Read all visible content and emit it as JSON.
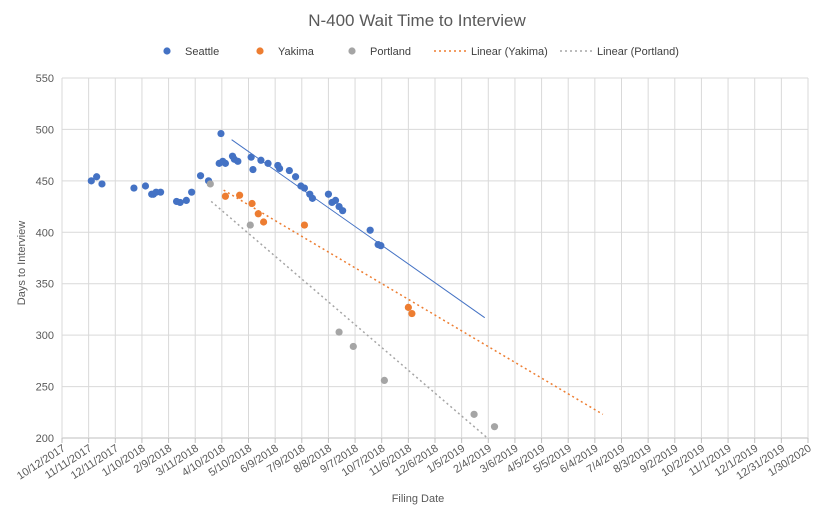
{
  "chart_data": {
    "type": "scatter",
    "title": "N-400 Wait Time to Interview",
    "xlabel": "Filing Date",
    "ylabel": "Days to Interview",
    "ylim": [
      200,
      550
    ],
    "yticks": [
      "200",
      "250",
      "300",
      "350",
      "400",
      "450",
      "500",
      "550"
    ],
    "xlim": [
      "2017-10-12",
      "2020-01-30"
    ],
    "xtick_labels": [
      "10/12/2017",
      "11/11/2017",
      "12/11/2017",
      "1/10/2018",
      "2/9/2018",
      "3/11/2018",
      "4/10/2018",
      "5/10/2018",
      "6/9/2018",
      "7/9/2018",
      "8/8/2018",
      "9/7/2018",
      "10/7/2018",
      "11/6/2018",
      "12/6/2018",
      "1/5/2019",
      "2/4/2019",
      "3/6/2019",
      "4/5/2019",
      "5/5/2019",
      "6/4/2019",
      "7/4/2019",
      "8/3/2019",
      "9/2/2019",
      "10/2/2019",
      "11/1/2019",
      "12/1/2019",
      "12/31/2019",
      "1/30/2020"
    ],
    "grid": true,
    "legend_position": "top",
    "series": [
      {
        "name": "Seattle",
        "color": "#4472c4",
        "kind": "scatter",
        "points": [
          [
            "2017-11-14",
            450
          ],
          [
            "2017-11-20",
            454
          ],
          [
            "2017-11-26",
            447
          ],
          [
            "2018-01-01",
            443
          ],
          [
            "2018-01-14",
            445
          ],
          [
            "2018-01-21",
            437
          ],
          [
            "2018-01-23",
            437
          ],
          [
            "2018-01-26",
            439
          ],
          [
            "2018-01-31",
            439
          ],
          [
            "2018-02-18",
            430
          ],
          [
            "2018-02-22",
            429
          ],
          [
            "2018-03-01",
            431
          ],
          [
            "2018-03-07",
            439
          ],
          [
            "2018-03-17",
            455
          ],
          [
            "2018-03-26",
            450
          ],
          [
            "2018-04-07",
            467
          ],
          [
            "2018-04-09",
            496
          ],
          [
            "2018-04-11",
            469
          ],
          [
            "2018-04-14",
            467
          ],
          [
            "2018-04-22",
            474
          ],
          [
            "2018-04-24",
            471
          ],
          [
            "2018-04-28",
            469
          ],
          [
            "2018-05-13",
            473
          ],
          [
            "2018-05-15",
            461
          ],
          [
            "2018-05-24",
            470
          ],
          [
            "2018-06-01",
            467
          ],
          [
            "2018-06-12",
            465
          ],
          [
            "2018-06-14",
            462
          ],
          [
            "2018-06-25",
            460
          ],
          [
            "2018-07-02",
            454
          ],
          [
            "2018-07-08",
            445
          ],
          [
            "2018-07-12",
            443
          ],
          [
            "2018-07-18",
            437
          ],
          [
            "2018-07-21",
            433
          ],
          [
            "2018-08-08",
            437
          ],
          [
            "2018-08-12",
            429
          ],
          [
            "2018-08-16",
            431
          ],
          [
            "2018-08-20",
            425
          ],
          [
            "2018-08-24",
            421
          ],
          [
            "2018-09-24",
            402
          ],
          [
            "2018-10-03",
            388
          ],
          [
            "2018-10-06",
            387
          ]
        ]
      },
      {
        "name": "Yakima",
        "color": "#ed7d31",
        "kind": "scatter",
        "points": [
          [
            "2018-04-14",
            435
          ],
          [
            "2018-04-30",
            436
          ],
          [
            "2018-05-14",
            428
          ],
          [
            "2018-05-21",
            418
          ],
          [
            "2018-05-27",
            410
          ],
          [
            "2018-07-12",
            407
          ],
          [
            "2018-11-06",
            327
          ],
          [
            "2018-11-10",
            321
          ]
        ]
      },
      {
        "name": "Portland",
        "color": "#a5a5a5",
        "kind": "scatter",
        "points": [
          [
            "2018-03-28",
            447
          ],
          [
            "2018-05-12",
            407
          ],
          [
            "2018-08-20",
            303
          ],
          [
            "2018-09-05",
            289
          ],
          [
            "2018-10-10",
            256
          ],
          [
            "2019-01-19",
            223
          ],
          [
            "2019-02-11",
            211
          ]
        ]
      },
      {
        "name": "Linear (Yakima)",
        "color": "#ed7d31",
        "kind": "trend",
        "dash": "2,3",
        "line": [
          [
            "2018-04-12",
            441
          ],
          [
            "2019-06-13",
            223
          ]
        ]
      },
      {
        "name": "Linear (Portland)",
        "color": "#a5a5a5",
        "kind": "trend",
        "dash": "2,3",
        "line": [
          [
            "2018-03-29",
            430
          ],
          [
            "2019-02-03",
            200
          ]
        ]
      },
      {
        "kind": "trend",
        "color": "#4472c4",
        "dash": "",
        "line": [
          [
            "2018-04-21",
            490
          ],
          [
            "2019-01-31",
            317
          ]
        ]
      }
    ]
  }
}
